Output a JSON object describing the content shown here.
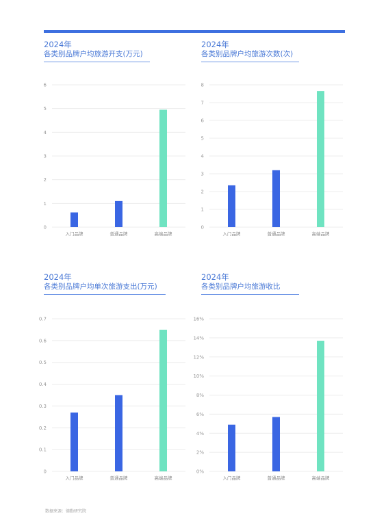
{
  "chart_data": [
    {
      "type": "bar",
      "year": "2024年",
      "title": "各类别品牌户均旅游开支(万元)",
      "categories": [
        "入门品牌",
        "普通品牌",
        "高端品牌"
      ],
      "values": [
        0.62,
        1.1,
        4.95
      ],
      "ylim": [
        0,
        6
      ],
      "yticks": [
        "0",
        "1",
        "2",
        "3",
        "4",
        "5",
        "6"
      ],
      "colors": [
        "#3a66e3",
        "#3a66e3",
        "#6fe3c1"
      ],
      "grid": true
    },
    {
      "type": "bar",
      "year": "2024年",
      "title": "各类别品牌户均旅游次数(次)",
      "categories": [
        "入门品牌",
        "普通品牌",
        "高端品牌"
      ],
      "values": [
        2.35,
        3.2,
        7.65
      ],
      "ylim": [
        0,
        8
      ],
      "yticks": [
        "0",
        "1",
        "2",
        "3",
        "4",
        "5",
        "6",
        "7",
        "8"
      ],
      "colors": [
        "#3a66e3",
        "#3a66e3",
        "#6fe3c1"
      ],
      "grid": true
    },
    {
      "type": "bar",
      "year": "2024年",
      "title": "各类别品牌户均单次旅游支出(万元)",
      "categories": [
        "入门品牌",
        "普通品牌",
        "高端品牌"
      ],
      "values": [
        0.27,
        0.35,
        0.65
      ],
      "ylim": [
        0,
        0.7
      ],
      "yticks": [
        "0",
        "0.1",
        "0.2",
        "0.3",
        "0.4",
        "0.5",
        "0.6",
        "0.7"
      ],
      "colors": [
        "#3a66e3",
        "#3a66e3",
        "#6fe3c1"
      ],
      "grid": true
    },
    {
      "type": "bar",
      "year": "2024年",
      "title": "各类别品牌户均旅游收比",
      "categories": [
        "入门品牌",
        "普通品牌",
        "高端品牌"
      ],
      "values": [
        4.9,
        5.7,
        13.7
      ],
      "ylim": [
        0,
        16
      ],
      "yticks": [
        "0%",
        "2%",
        "4%",
        "6%",
        "8%",
        "10%",
        "12%",
        "14%",
        "16%"
      ],
      "colors": [
        "#3a66e3",
        "#3a66e3",
        "#6fe3c1"
      ],
      "grid": true
    }
  ],
  "footnote": "数据来源：德勤研究院"
}
